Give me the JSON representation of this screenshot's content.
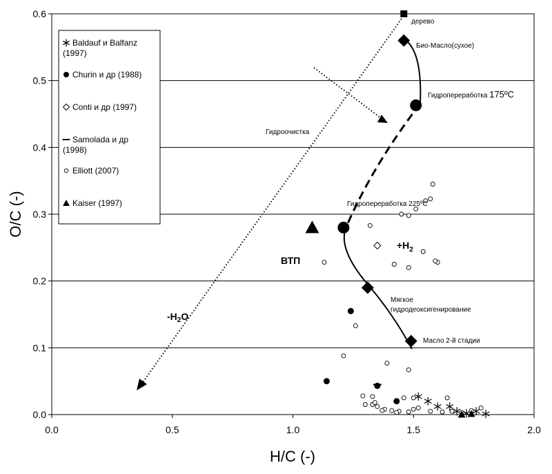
{
  "chart_data": {
    "type": "scatter",
    "xlabel": "H/C (-)",
    "ylabel": "O/C (-)",
    "xlim": [
      0,
      2.0
    ],
    "ylim": [
      0,
      0.6
    ],
    "xticks": [
      "0.0",
      "0.5",
      "1.0",
      "1.5",
      "2.0"
    ],
    "yticks": [
      "0.0",
      "0.1",
      "0.2",
      "0.3",
      "0.4",
      "0.5",
      "0.6"
    ],
    "grid": "horizontal",
    "legend_position": "top-left",
    "legend": [
      {
        "label": "Baldauf  и  Balfanz (1997)",
        "marker": "asterisk"
      },
      {
        "label": "Churin  и др (1988)",
        "marker": "filled-circle"
      },
      {
        "label": "Conti и др (1997)",
        "marker": "open-diamond"
      },
      {
        "label": "Samolada  и др (1998)",
        "marker": "dash"
      },
      {
        "label": "Elliott (2007)",
        "marker": "open-circle"
      },
      {
        "label": "Kaiser (1997)",
        "marker": "filled-triangle"
      }
    ],
    "series": [
      {
        "name": "Baldauf  и  Balfanz (1997)",
        "marker": "asterisk",
        "points": [
          [
            1.52,
            0.027
          ],
          [
            1.56,
            0.02
          ],
          [
            1.6,
            0.012
          ],
          [
            1.65,
            0.012
          ],
          [
            1.68,
            0.005
          ],
          [
            1.72,
            0.002
          ],
          [
            1.76,
            0.005
          ],
          [
            1.8,
            0.001
          ]
        ]
      },
      {
        "name": "Churin  и др (1988)",
        "marker": "filled-circle",
        "points": [
          [
            1.14,
            0.05
          ],
          [
            1.24,
            0.155
          ],
          [
            1.35,
            0.043
          ],
          [
            1.43,
            0.02
          ]
        ]
      },
      {
        "name": "Conti и др (1997)",
        "marker": "open-diamond",
        "points": [
          [
            1.35,
            0.253
          ]
        ]
      },
      {
        "name": "Samolada  и др (1998)",
        "marker": "dash",
        "points": [
          [
            1.35,
            0.045
          ]
        ]
      },
      {
        "name": "Elliott (2007)",
        "marker": "open-circle",
        "points": [
          [
            1.58,
            0.345
          ],
          [
            1.57,
            0.323
          ],
          [
            1.55,
            0.32
          ],
          [
            1.51,
            0.308
          ],
          [
            1.45,
            0.3
          ],
          [
            1.48,
            0.298
          ],
          [
            1.32,
            0.283
          ],
          [
            1.54,
            0.244
          ],
          [
            1.6,
            0.228
          ],
          [
            1.59,
            0.23
          ],
          [
            1.13,
            0.228
          ],
          [
            1.42,
            0.225
          ],
          [
            1.48,
            0.22
          ],
          [
            1.26,
            0.133
          ],
          [
            1.21,
            0.088
          ],
          [
            1.39,
            0.077
          ],
          [
            1.48,
            0.067
          ],
          [
            1.29,
            0.028
          ],
          [
            1.33,
            0.027
          ],
          [
            1.46,
            0.025
          ],
          [
            1.5,
            0.025
          ],
          [
            1.64,
            0.025
          ],
          [
            1.3,
            0.015
          ],
          [
            1.33,
            0.015
          ],
          [
            1.35,
            0.012
          ],
          [
            1.38,
            0.008
          ],
          [
            1.41,
            0.006
          ],
          [
            1.44,
            0.005
          ],
          [
            1.48,
            0.004
          ],
          [
            1.5,
            0.008
          ],
          [
            1.52,
            0.01
          ],
          [
            1.57,
            0.005
          ],
          [
            1.62,
            0.004
          ],
          [
            1.66,
            0.005
          ],
          [
            1.7,
            0.003
          ],
          [
            1.74,
            0.006
          ],
          [
            1.78,
            0.01
          ],
          [
            1.34,
            0.018
          ],
          [
            1.37,
            0.006
          ],
          [
            1.43,
            0.003
          ]
        ]
      },
      {
        "name": "Kaiser (1997)",
        "marker": "filled-triangle",
        "points": [
          [
            1.74,
            0.001
          ],
          [
            1.7,
            0.0
          ]
        ]
      }
    ],
    "process_points": [
      {
        "label": "дерево",
        "marker": "filled-square",
        "x": 1.46,
        "y": 0.6
      },
      {
        "label": "Био-Масло(сухое)",
        "marker": "filled-diamond",
        "x": 1.46,
        "y": 0.56
      },
      {
        "label": "Гидропереработка 175ºC",
        "marker": "filled-circle-large",
        "x": 1.51,
        "y": 0.463
      },
      {
        "label": "Гидропереработка 225ºC",
        "marker": "filled-circle-large",
        "x": 1.21,
        "y": 0.28
      },
      {
        "label": "Мягкое гидродеоксигенирование",
        "marker": "filled-diamond",
        "x": 1.31,
        "y": 0.19
      },
      {
        "label": "Масло 2-й стадии",
        "marker": "filled-diamond",
        "x": 1.49,
        "y": 0.11
      },
      {
        "label": "ВТП",
        "marker": "filled-triangle-large",
        "x": 1.08,
        "y": 0.28
      }
    ],
    "annotations": {
      "wood": "дерево",
      "bio_oil": "Био-Масло(сухое)",
      "hydro175_text": "Гидропереработка",
      "hydro175_temp": "175ºC",
      "hydrotreat": "Гидроочистка",
      "hydro225": "Гидропереработка 225ºC",
      "h2_plus": "+H",
      "h2_sub": "2",
      "vtp": "ВТП",
      "mild_line1": "Мягкое",
      "mild_line2": "гидродеоксигенирование",
      "stage2": "Масло 2-й стадии",
      "minus_h2o_pre": "-H",
      "minus_h2o_sub": "2",
      "minus_h2o_post": "O"
    }
  }
}
